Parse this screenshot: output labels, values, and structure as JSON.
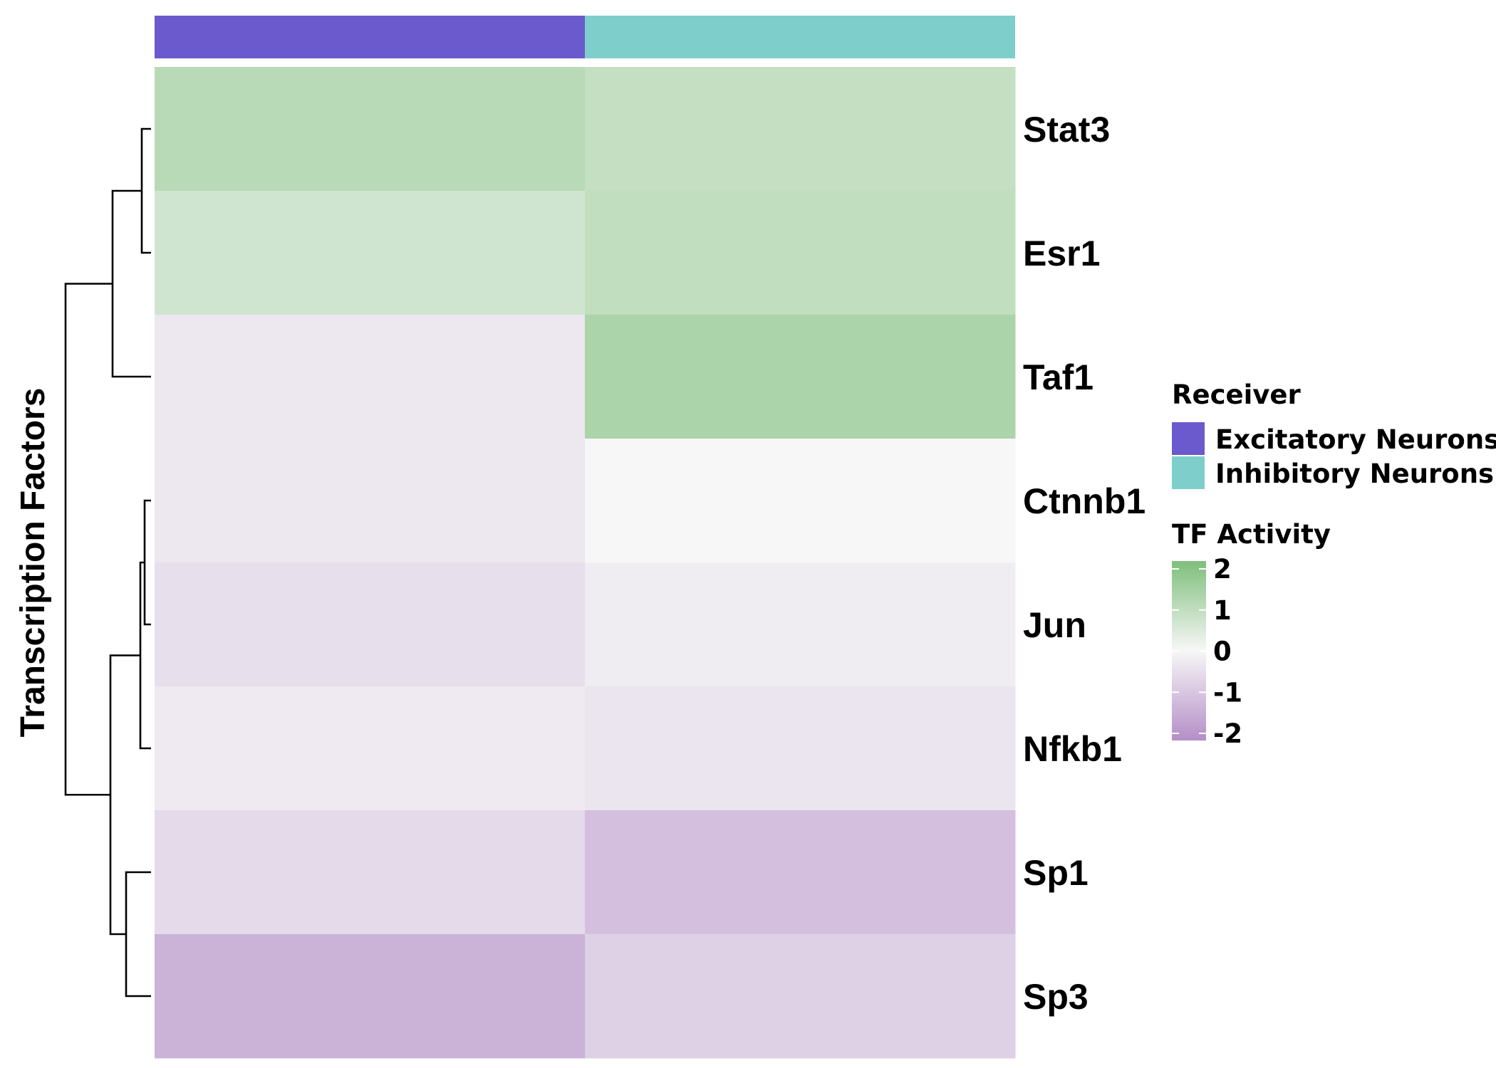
{
  "chart_data": {
    "type": "heatmap",
    "columns": [
      "Excitatory Neurons",
      "Inhibitory Neurons"
    ],
    "rows": [
      "Stat3",
      "Esr1",
      "Taf1",
      "Ctnnb1",
      "Jun",
      "Nfkb1",
      "Sp1",
      "Sp3"
    ],
    "values": [
      [
        1.05,
        0.85
      ],
      [
        0.65,
        0.9
      ],
      [
        -0.3,
        1.25
      ],
      [
        -0.3,
        0.0
      ],
      [
        -0.45,
        -0.2
      ],
      [
        -0.25,
        -0.35
      ],
      [
        -0.55,
        -1.05
      ],
      [
        -1.3,
        -0.75
      ]
    ],
    "ylabel": "Transcription Factors",
    "color_scale": {
      "min": -2,
      "max": 2,
      "low_color": "#b48ec7",
      "mid_color": "#f7f7f7",
      "high_color": "#7fbf7b",
      "ticks": [
        2,
        1,
        0,
        -1,
        -2
      ]
    },
    "annotation": {
      "title": "Receiver",
      "items": [
        {
          "label": "Excitatory Neurons",
          "color": "#6a5acd"
        },
        {
          "label": "Inhibitory Neurons",
          "color": "#7ecfcb"
        }
      ]
    },
    "colorbar_title": "TF Activity",
    "dendrogram": [
      {
        "merge": [
          "Stat3",
          "Esr1"
        ]
      },
      {
        "merge": [
          "Stat3+Esr1",
          "Taf1"
        ]
      },
      {
        "merge": [
          "Ctnnb1",
          "Jun"
        ]
      },
      {
        "merge": [
          "Ctnnb1+Jun",
          "Nfkb1"
        ]
      },
      {
        "merge": [
          "Sp1",
          "Sp3"
        ]
      },
      {
        "merge": [
          "Ctnnb1+Jun+Nfkb1",
          "Sp1+Sp3"
        ]
      },
      {
        "merge": [
          "all-upper",
          "all-lower"
        ]
      }
    ],
    "legend_position": "right"
  }
}
